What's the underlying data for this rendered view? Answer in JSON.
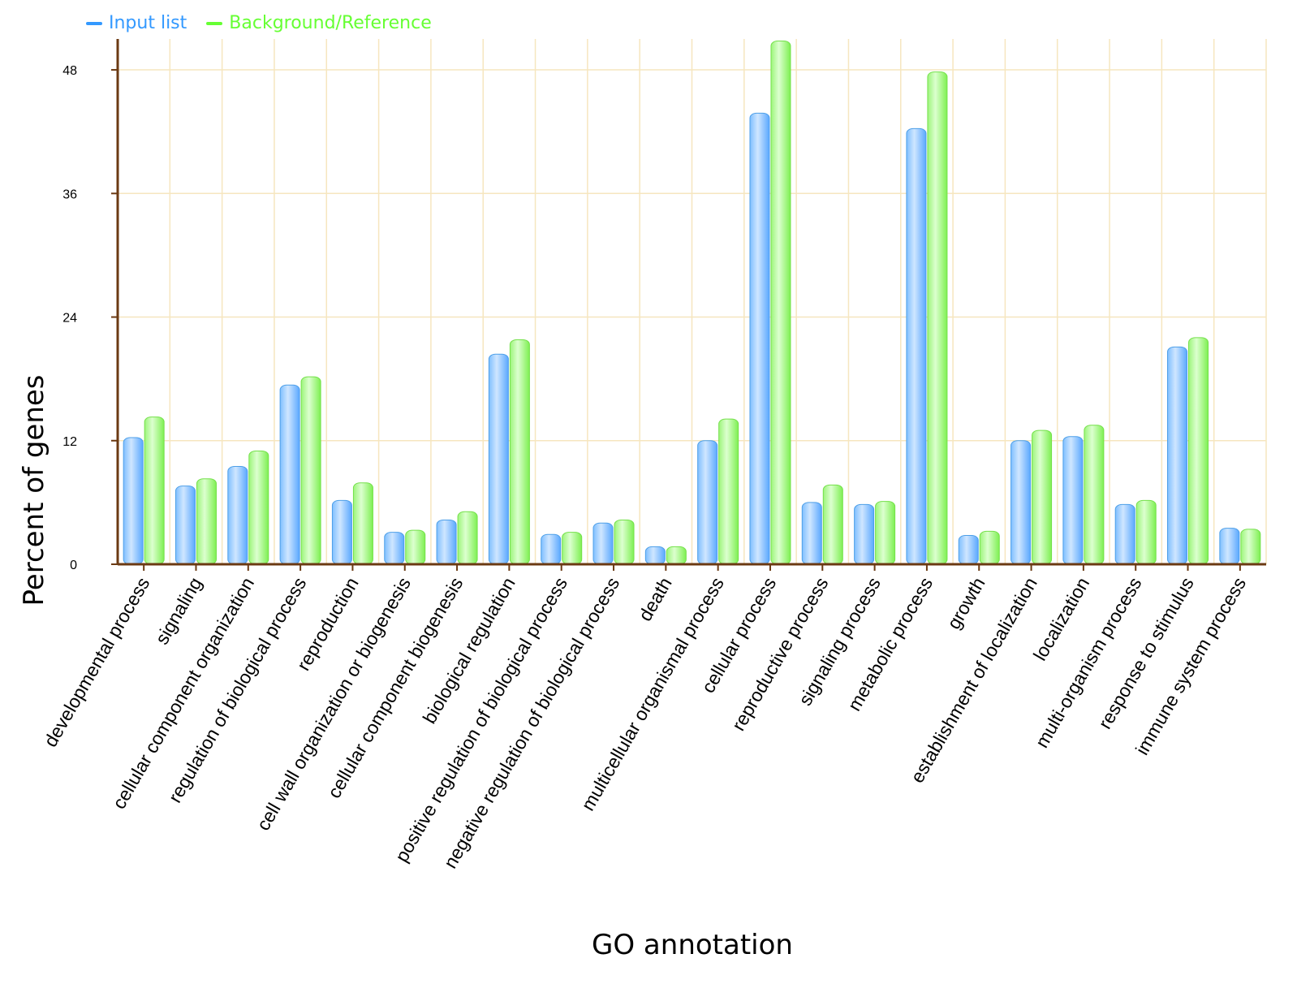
{
  "chart_data": {
    "type": "bar",
    "xlabel": "GO annotation",
    "ylabel": "Percent of genes",
    "ylim": [
      0,
      51
    ],
    "yticks": [
      0,
      12,
      24,
      36,
      48
    ],
    "grid": true,
    "legend_position": "top-left",
    "categories": [
      "developmental process",
      "signaling",
      "cellular component organization",
      "regulation of biological process",
      "reproduction",
      "cell wall organization or biogenesis",
      "cellular component biogenesis",
      "biological regulation",
      "positive regulation of biological process",
      "negative regulation of biological process",
      "death",
      "multicellular organismal process",
      "cellular process",
      "reproductive process",
      "signaling process",
      "metabolic process",
      "growth",
      "establishment of localization",
      "localization",
      "multi-organism process",
      "response to stimulus",
      "immune system process"
    ],
    "series": [
      {
        "name": "Input list",
        "color": "#3399ff",
        "values": [
          12.3,
          7.6,
          9.5,
          17.4,
          6.2,
          3.1,
          4.3,
          20.4,
          2.9,
          4.0,
          1.7,
          12.0,
          43.8,
          6.0,
          5.8,
          42.3,
          2.8,
          12.0,
          12.4,
          5.8,
          21.1,
          3.5
        ]
      },
      {
        "name": "Background/Reference",
        "color": "#66ff33",
        "values": [
          14.3,
          8.3,
          11.0,
          18.2,
          7.9,
          3.3,
          5.1,
          21.8,
          3.1,
          4.3,
          1.7,
          14.1,
          50.8,
          7.7,
          6.1,
          47.8,
          3.2,
          13.0,
          13.5,
          6.2,
          22.0,
          3.4
        ]
      }
    ]
  }
}
